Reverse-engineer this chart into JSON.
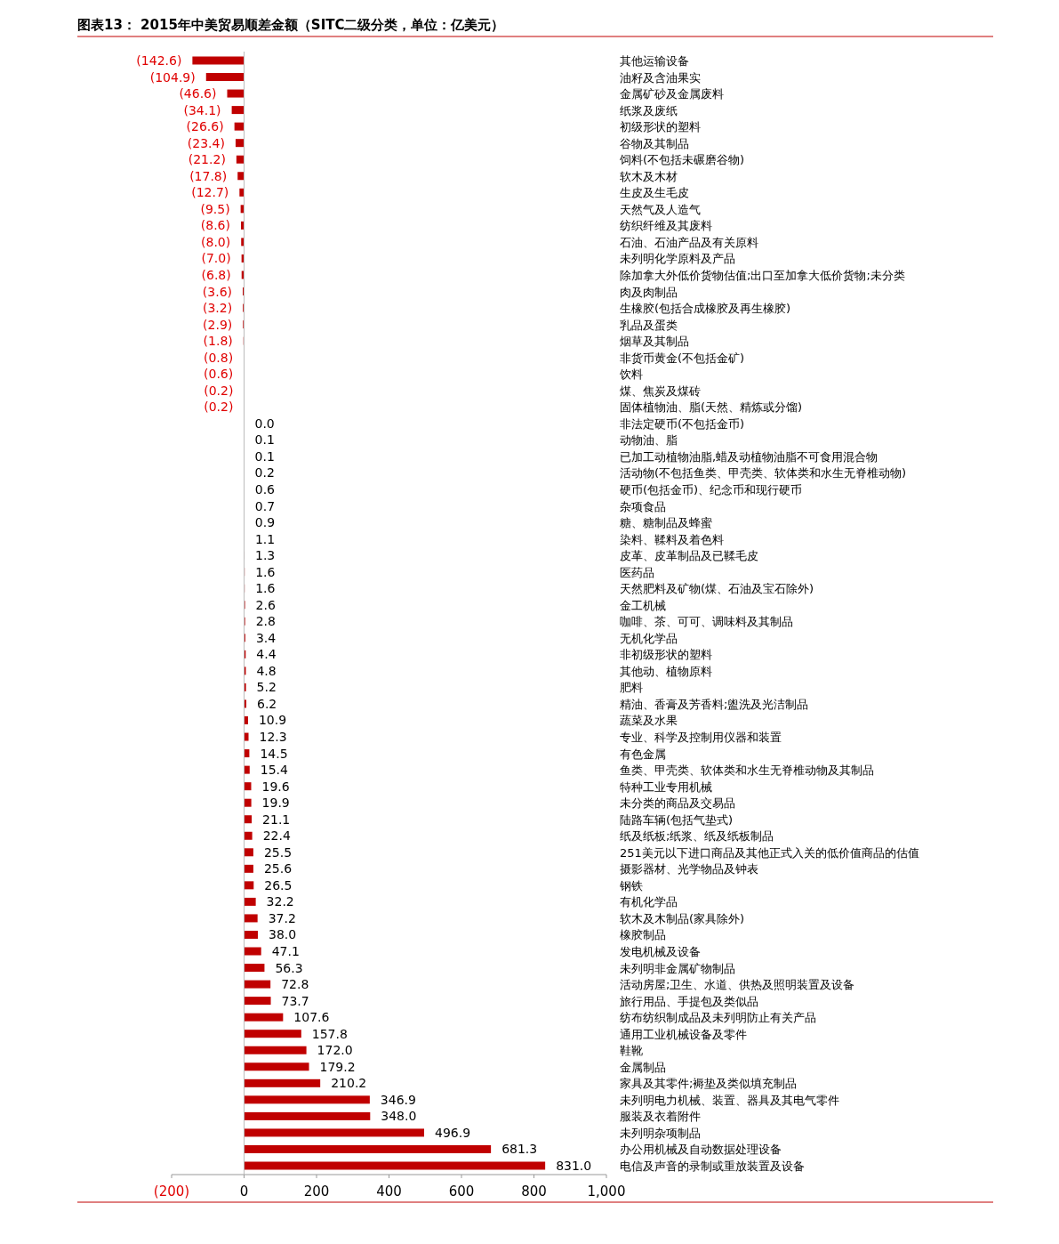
{
  "chart_data": {
    "type": "bar",
    "orientation": "horizontal",
    "title": "图表13：  2015年中美贸易顺差金额（SITC二级分类，单位：亿美元）",
    "categories": [
      "其他运输设备",
      "油籽及含油果实",
      "金属矿砂及金属废料",
      "纸浆及废纸",
      "初级形状的塑料",
      "谷物及其制品",
      "饲料(不包括未碾磨谷物)",
      "软木及木材",
      "生皮及生毛皮",
      "天然气及人造气",
      "纺织纤维及其废料",
      "石油、石油产品及有关原料",
      "未列明化学原料及产品",
      "除加拿大外低价货物估值;出口至加拿大低价货物;未分类",
      "肉及肉制品",
      "生橡胶(包括合成橡胶及再生橡胶)",
      "乳品及蛋类",
      "烟草及其制品",
      "非货币黄金(不包括金矿)",
      "饮料",
      "煤、焦炭及煤砖",
      "固体植物油、脂(天然、精炼或分馏)",
      "非法定硬币(不包括金币)",
      "动物油、脂",
      "已加工动植物油脂,蜡及动植物油脂不可食用混合物",
      "活动物(不包括鱼类、甲壳类、软体类和水生无脊椎动物)",
      "硬币(包括金币)、纪念币和现行硬币",
      "杂项食品",
      "糖、糖制品及蜂蜜",
      "染料、鞣料及着色料",
      "皮革、皮革制品及已鞣毛皮",
      "医药品",
      "天然肥料及矿物(煤、石油及宝石除外)",
      "金工机械",
      "咖啡、茶、可可、调味料及其制品",
      "无机化学品",
      "非初级形状的塑料",
      "其他动、植物原料",
      "肥料",
      "精油、香膏及芳香料;盥洗及光洁制品",
      "蔬菜及水果",
      "专业、科学及控制用仪器和装置",
      "有色金属",
      "鱼类、甲壳类、软体类和水生无脊椎动物及其制品",
      "特种工业专用机械",
      "未分类的商品及交易品",
      "陆路车辆(包括气垫式)",
      "纸及纸板;纸浆、纸及纸板制品",
      "251美元以下进口商品及其他正式入关的低价值商品的估值",
      "摄影器材、光学物品及钟表",
      "钢铁",
      "有机化学品",
      "软木及木制品(家具除外)",
      "橡胶制品",
      "发电机械及设备",
      "未列明非金属矿物制品",
      "活动房屋;卫生、水道、供热及照明装置及设备",
      "旅行用品、手提包及类似品",
      "纺布纺织制成品及未列明防止有关产品",
      "通用工业机械设备及零件",
      "鞋靴",
      "金属制品",
      "家具及其零件;褥垫及类似填充制品",
      "未列明电力机械、装置、器具及其电气零件",
      "服装及衣着附件",
      "未列明杂项制品",
      "办公用机械及自动数据处理设备",
      "电信及声音的录制或重放装置及设备"
    ],
    "values": [
      -142.6,
      -104.9,
      -46.6,
      -34.1,
      -26.6,
      -23.4,
      -21.2,
      -17.8,
      -12.7,
      -9.5,
      -8.6,
      -8.0,
      -7.0,
      -6.8,
      -3.6,
      -3.2,
      -2.9,
      -1.8,
      -0.8,
      -0.6,
      -0.2,
      -0.2,
      0.0,
      0.1,
      0.1,
      0.2,
      0.6,
      0.7,
      0.9,
      1.1,
      1.3,
      1.6,
      1.6,
      2.6,
      2.8,
      3.4,
      4.4,
      4.8,
      5.2,
      6.2,
      10.9,
      12.3,
      14.5,
      15.4,
      19.6,
      19.9,
      21.1,
      22.4,
      25.5,
      25.6,
      26.5,
      32.2,
      37.2,
      38.0,
      47.1,
      56.3,
      72.8,
      73.7,
      107.6,
      157.8,
      172.0,
      179.2,
      210.2,
      346.9,
      348.0,
      496.9,
      681.3,
      831.0
    ],
    "value_labels": [
      "(142.6)",
      "(104.9)",
      "(46.6)",
      "(34.1)",
      "(26.6)",
      "(23.4)",
      "(21.2)",
      "(17.8)",
      "(12.7)",
      "(9.5)",
      "(8.6)",
      "(8.0)",
      "(7.0)",
      "(6.8)",
      "(3.6)",
      "(3.2)",
      "(2.9)",
      "(1.8)",
      "(0.8)",
      "(0.6)",
      "(0.2)",
      "(0.2)",
      "0.0",
      "0.1",
      "0.1",
      "0.2",
      "0.6",
      "0.7",
      "0.9",
      "1.1",
      "1.3",
      "1.6",
      "1.6",
      "2.6",
      "2.8",
      "3.4",
      "4.4",
      "4.8",
      "5.2",
      "6.2",
      "10.9",
      "12.3",
      "14.5",
      "15.4",
      "19.6",
      "19.9",
      "21.1",
      "22.4",
      "25.5",
      "25.6",
      "26.5",
      "32.2",
      "37.2",
      "38.0",
      "47.1",
      "56.3",
      "72.8",
      "73.7",
      "107.6",
      "157.8",
      "172.0",
      "179.2",
      "210.2",
      "346.9",
      "348.0",
      "496.9",
      "681.3",
      "831.0"
    ],
    "color": "#c00000",
    "xlim": [
      -200,
      1000
    ],
    "xticks": [
      {
        "value": -200,
        "label": "(200)"
      },
      0,
      200,
      400,
      600,
      800,
      {
        "value": 1000,
        "label": "1,000"
      }
    ],
    "grid": "x"
  }
}
